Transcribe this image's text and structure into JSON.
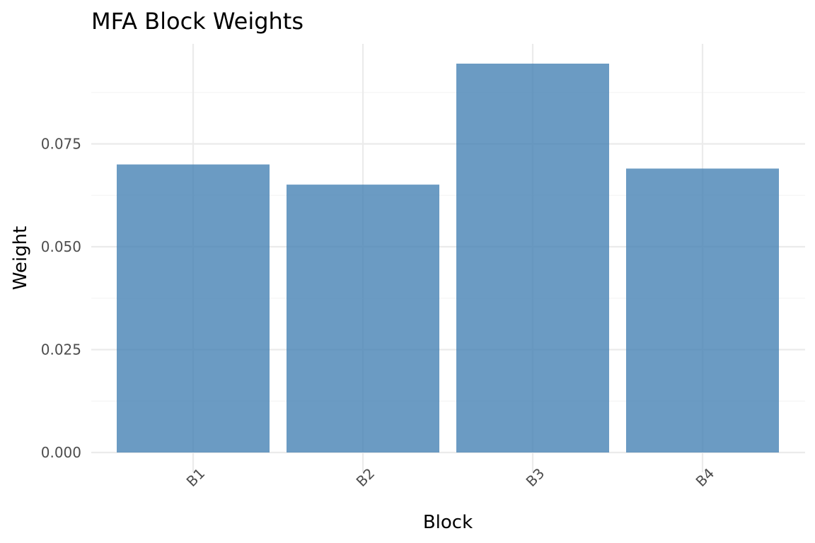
{
  "chart_data": {
    "type": "bar",
    "title": "MFA Block Weights",
    "xlabel": "Block",
    "ylabel": "Weight",
    "categories": [
      "B1",
      "B2",
      "B3",
      "B4"
    ],
    "values": [
      0.07,
      0.0651,
      0.0945,
      0.069
    ],
    "ylim": [
      0,
      0.0945
    ],
    "yticks": [
      0.0,
      0.025,
      0.05,
      0.075
    ],
    "ytick_labels": [
      "0.000",
      "0.025",
      "0.050",
      "0.075"
    ],
    "grid": true,
    "legend": "none",
    "bar_color": "#4682b4",
    "bar_opacity": 0.8,
    "grid_major_color": "#ebebeb",
    "grid_minor_color": "#f3f3f3",
    "x_tick_rotation": "45 degrees"
  }
}
